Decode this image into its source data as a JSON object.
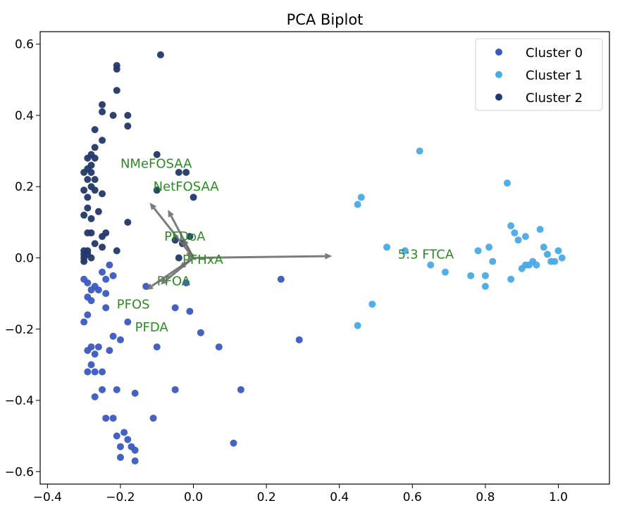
{
  "chart_data": {
    "type": "scatter",
    "title": "PCA Biplot",
    "xlabel": "",
    "ylabel": "",
    "xlim": [
      -0.42,
      1.14
    ],
    "ylim": [
      -0.635,
      0.635
    ],
    "xticks": [
      -0.4,
      -0.2,
      0.0,
      0.2,
      0.4,
      0.6,
      0.8,
      1.0
    ],
    "yticks": [
      -0.6,
      -0.4,
      -0.2,
      0.0,
      0.2,
      0.4,
      0.6
    ],
    "xtick_labels": [
      "−0.4",
      "−0.2",
      "0.0",
      "0.2",
      "0.4",
      "0.6",
      "0.8",
      "1.0"
    ],
    "ytick_labels": [
      "−0.6",
      "−0.4",
      "−0.2",
      "0.0",
      "0.2",
      "0.4",
      "0.6"
    ],
    "grid": false,
    "legend_position": "top-right",
    "series": [
      {
        "name": "Cluster 0",
        "color": "#3a58c0",
        "points": [
          [
            -0.3,
            -0.18
          ],
          [
            -0.29,
            -0.16
          ],
          [
            -0.3,
            -0.06
          ],
          [
            -0.29,
            -0.07
          ],
          [
            -0.28,
            -0.09
          ],
          [
            -0.29,
            -0.11
          ],
          [
            -0.28,
            -0.12
          ],
          [
            -0.27,
            -0.08
          ],
          [
            -0.26,
            -0.09
          ],
          [
            -0.25,
            -0.04
          ],
          [
            -0.24,
            -0.06
          ],
          [
            -0.24,
            -0.1
          ],
          [
            -0.24,
            -0.14
          ],
          [
            -0.23,
            -0.02
          ],
          [
            -0.22,
            -0.05
          ],
          [
            -0.29,
            -0.26
          ],
          [
            -0.28,
            -0.25
          ],
          [
            -0.28,
            -0.3
          ],
          [
            -0.27,
            -0.27
          ],
          [
            -0.29,
            -0.32
          ],
          [
            -0.27,
            -0.32
          ],
          [
            -0.26,
            -0.25
          ],
          [
            -0.25,
            -0.32
          ],
          [
            -0.23,
            -0.26
          ],
          [
            -0.22,
            -0.22
          ],
          [
            -0.2,
            -0.23
          ],
          [
            -0.18,
            -0.18
          ],
          [
            -0.25,
            -0.37
          ],
          [
            -0.24,
            -0.45
          ],
          [
            -0.27,
            -0.39
          ],
          [
            -0.21,
            -0.37
          ],
          [
            -0.22,
            -0.45
          ],
          [
            -0.21,
            -0.5
          ],
          [
            -0.2,
            -0.53
          ],
          [
            -0.19,
            -0.49
          ],
          [
            -0.18,
            -0.51
          ],
          [
            -0.17,
            -0.53
          ],
          [
            -0.16,
            -0.54
          ],
          [
            -0.16,
            -0.57
          ],
          [
            -0.2,
            -0.56
          ],
          [
            -0.16,
            -0.38
          ],
          [
            -0.11,
            -0.45
          ],
          [
            -0.1,
            -0.25
          ],
          [
            -0.05,
            -0.37
          ],
          [
            -0.05,
            -0.14
          ],
          [
            -0.13,
            -0.08
          ],
          [
            -0.02,
            -0.07
          ],
          [
            -0.01,
            -0.15
          ],
          [
            0.02,
            -0.21
          ],
          [
            0.07,
            -0.25
          ],
          [
            0.11,
            -0.52
          ],
          [
            0.13,
            -0.37
          ],
          [
            0.24,
            -0.06
          ],
          [
            0.29,
            -0.23
          ]
        ]
      },
      {
        "name": "Cluster 1",
        "color": "#4aaae6",
        "points": [
          [
            0.62,
            0.3
          ],
          [
            0.45,
            0.15
          ],
          [
            0.46,
            0.17
          ],
          [
            0.53,
            0.03
          ],
          [
            0.58,
            0.02
          ],
          [
            0.49,
            -0.13
          ],
          [
            0.45,
            -0.19
          ],
          [
            0.65,
            -0.02
          ],
          [
            0.69,
            -0.04
          ],
          [
            0.76,
            -0.05
          ],
          [
            0.78,
            0.02
          ],
          [
            0.81,
            0.03
          ],
          [
            0.82,
            -0.01
          ],
          [
            0.8,
            -0.05
          ],
          [
            0.8,
            -0.08
          ],
          [
            0.86,
            0.21
          ],
          [
            0.87,
            0.09
          ],
          [
            0.88,
            0.07
          ],
          [
            0.89,
            0.05
          ],
          [
            0.91,
            0.06
          ],
          [
            0.9,
            -0.03
          ],
          [
            0.87,
            -0.06
          ],
          [
            0.92,
            -0.02
          ],
          [
            0.93,
            -0.01
          ],
          [
            0.95,
            0.08
          ],
          [
            0.96,
            0.03
          ],
          [
            0.97,
            0.01
          ],
          [
            0.98,
            -0.01
          ],
          [
            0.99,
            -0.01
          ],
          [
            1.0,
            0.02
          ],
          [
            1.01,
            0.0
          ],
          [
            0.94,
            -0.02
          ],
          [
            0.91,
            -0.02
          ]
        ]
      },
      {
        "name": "Cluster 2",
        "color": "#23386a",
        "points": [
          [
            -0.09,
            0.57
          ],
          [
            -0.21,
            0.54
          ],
          [
            -0.21,
            0.53
          ],
          [
            -0.21,
            0.47
          ],
          [
            -0.25,
            0.43
          ],
          [
            -0.25,
            0.41
          ],
          [
            -0.18,
            0.4
          ],
          [
            -0.22,
            0.4
          ],
          [
            -0.18,
            0.37
          ],
          [
            -0.27,
            0.36
          ],
          [
            -0.25,
            0.33
          ],
          [
            -0.27,
            0.31
          ],
          [
            -0.28,
            0.29
          ],
          [
            -0.29,
            0.28
          ],
          [
            -0.27,
            0.28
          ],
          [
            -0.28,
            0.26
          ],
          [
            -0.29,
            0.25
          ],
          [
            -0.3,
            0.24
          ],
          [
            -0.28,
            0.24
          ],
          [
            -0.29,
            0.22
          ],
          [
            -0.27,
            0.22
          ],
          [
            -0.28,
            0.2
          ],
          [
            -0.3,
            0.19
          ],
          [
            -0.27,
            0.19
          ],
          [
            -0.29,
            0.17
          ],
          [
            -0.25,
            0.18
          ],
          [
            -0.29,
            0.14
          ],
          [
            -0.3,
            0.12
          ],
          [
            -0.28,
            0.11
          ],
          [
            -0.26,
            0.13
          ],
          [
            -0.28,
            0.07
          ],
          [
            -0.29,
            0.07
          ],
          [
            -0.27,
            0.04
          ],
          [
            -0.25,
            0.06
          ],
          [
            -0.3,
            0.02
          ],
          [
            -0.3,
            0.01
          ],
          [
            -0.29,
            0.02
          ],
          [
            -0.29,
            0.01
          ],
          [
            -0.3,
            0.0
          ],
          [
            -0.3,
            -0.01
          ],
          [
            -0.28,
            0.0
          ],
          [
            -0.25,
            0.03
          ],
          [
            -0.24,
            0.07
          ],
          [
            -0.21,
            0.02
          ],
          [
            -0.18,
            0.1
          ],
          [
            -0.1,
            0.29
          ],
          [
            -0.1,
            0.19
          ],
          [
            -0.04,
            0.24
          ],
          [
            -0.02,
            0.24
          ],
          [
            0.0,
            0.17
          ],
          [
            -0.03,
            0.04
          ],
          [
            -0.01,
            0.06
          ],
          [
            -0.05,
            0.05
          ],
          [
            -0.04,
            0.0
          ]
        ]
      }
    ],
    "loadings": [
      {
        "name": "5:3 FTCA",
        "dx": 0.38,
        "dy": 0.005,
        "label_x": 0.56,
        "label_y": 0.01
      },
      {
        "name": "NMeFOSAA",
        "dx": -0.12,
        "dy": 0.155,
        "label_x": -0.2,
        "label_y": 0.265
      },
      {
        "name": "NetFOSAA",
        "dx": -0.07,
        "dy": 0.135,
        "label_x": -0.11,
        "label_y": 0.2
      },
      {
        "name": "PFDoA",
        "dx": -0.03,
        "dy": 0.055,
        "label_x": -0.08,
        "label_y": 0.06
      },
      {
        "name": "PFHxA",
        "dx": -0.02,
        "dy": 0.015,
        "label_x": -0.03,
        "label_y": -0.005
      },
      {
        "name": "PFOA",
        "dx": -0.04,
        "dy": -0.03,
        "label_x": -0.1,
        "label_y": -0.065
      },
      {
        "name": "PFOS",
        "dx": -0.13,
        "dy": -0.09,
        "label_x": -0.21,
        "label_y": -0.13
      },
      {
        "name": "PFDA",
        "dx": -0.09,
        "dy": -0.075,
        "label_x": -0.16,
        "label_y": -0.195
      }
    ],
    "arrow_color": "#6e6e6e",
    "loading_label_color": "#2e8b24"
  }
}
